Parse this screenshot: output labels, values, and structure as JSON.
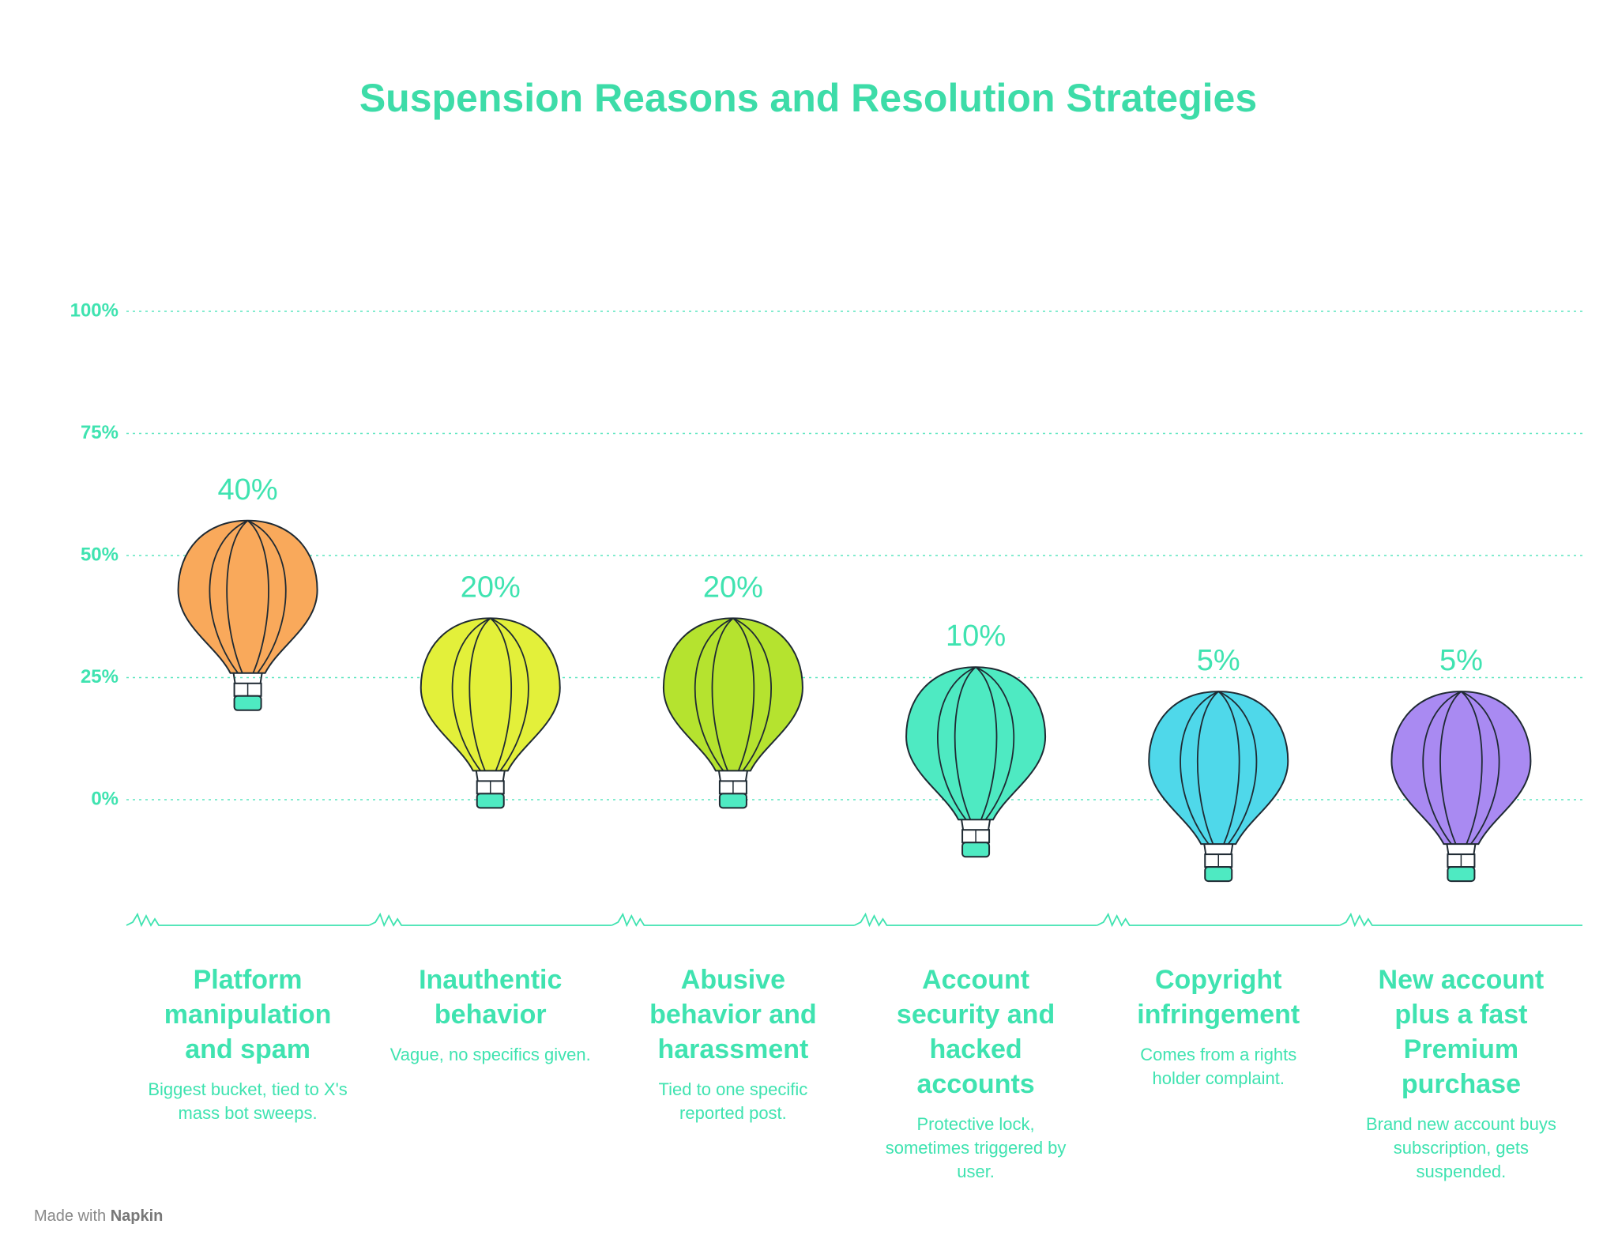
{
  "chart_data": {
    "type": "balloon",
    "title": "Suspension Reasons and Resolution Strategies",
    "categories": [
      "Platform manipulation and spam",
      "Inauthentic behavior",
      "Abusive behavior and harassment",
      "Account security and hacked accounts",
      "Copyright infringement",
      "New account plus a fast Premium purchase"
    ],
    "descriptions": [
      "Biggest bucket, tied to X's mass bot sweeps.",
      "Vague, no specifics given.",
      "Tied to one specific reported post.",
      "Protective lock, sometimes triggered by user.",
      "Comes from a rights holder complaint.",
      "Brand new account buys subscription, gets suspended."
    ],
    "values": [
      40,
      20,
      20,
      10,
      5,
      5
    ],
    "value_labels": [
      "40%",
      "20%",
      "20%",
      "10%",
      "5%",
      "5%"
    ],
    "colors": [
      "#f9a95b",
      "#e3f03a",
      "#b5e32f",
      "#4eeac2",
      "#4fd8ea",
      "#a98af2"
    ],
    "ylim": [
      0,
      100
    ],
    "yticks": [
      {
        "value": 0,
        "label": "0%"
      },
      {
        "value": 25,
        "label": "25%"
      },
      {
        "value": 50,
        "label": "50%"
      },
      {
        "value": 75,
        "label": "75%"
      },
      {
        "value": 100,
        "label": "100%"
      }
    ],
    "grid": true
  },
  "footer": {
    "text": "Made with",
    "brand": "Napkin"
  }
}
